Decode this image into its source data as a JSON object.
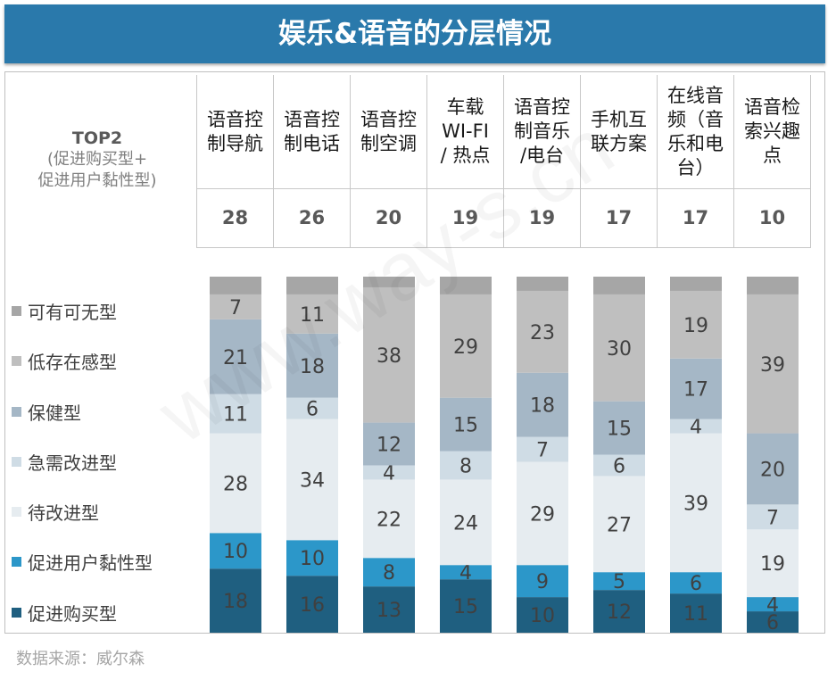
{
  "title": "娱乐&语音的分层情况",
  "header": {
    "row_label_line1": "TOP2",
    "row_label_line2": "(促进购买型+",
    "row_label_line3": "促进用户黏性型)"
  },
  "source": "数据来源：威尔森",
  "watermark": "www.way-s.cn",
  "colors": {
    "可有可无型": "#a6a6a6",
    "低存在感型": "#bfbfbf",
    "保健型": "#a5b7c6",
    "急需改进型": "#cfdce5",
    "待改进型": "#e6ecf0",
    "促进用户黏性型": "#2c97c9",
    "促进购买型": "#1f5f80"
  },
  "chart_data": {
    "type": "bar",
    "stacked": true,
    "normalized": true,
    "categories": [
      "语音控制导航",
      "语音控制电话",
      "语音控制空调",
      "车载WI-FI/ 热点",
      "语音控制音乐/电台",
      "手机互联方案",
      "在线音频（音乐和电台）",
      "语音检索兴趣点"
    ],
    "category_lines": [
      [
        "语音控",
        "制导航"
      ],
      [
        "语音控",
        "制电话"
      ],
      [
        "语音控",
        "制空调"
      ],
      [
        "车载",
        "WI-FI",
        "/ 热点"
      ],
      [
        "语音控",
        "制音乐",
        "/电台"
      ],
      [
        "手机互",
        "联方案"
      ],
      [
        "在线音",
        "频（音",
        "乐和电",
        "台）"
      ],
      [
        "语音检",
        "索兴趣",
        "点"
      ]
    ],
    "top2": [
      "28",
      "26",
      "20",
      "19",
      "19",
      "17",
      "17",
      "10"
    ],
    "series": [
      {
        "name": "促进购买型",
        "values": [
          18,
          16,
          13,
          15,
          10,
          12,
          11,
          6
        ]
      },
      {
        "name": "促进用户黏性型",
        "values": [
          10,
          10,
          8,
          4,
          9,
          5,
          6,
          4
        ]
      },
      {
        "name": "待改进型",
        "values": [
          28,
          34,
          22,
          24,
          29,
          27,
          39,
          19
        ]
      },
      {
        "name": "急需改进型",
        "values": [
          11,
          6,
          4,
          8,
          7,
          6,
          4,
          7
        ]
      },
      {
        "name": "保健型",
        "values": [
          21,
          18,
          12,
          15,
          18,
          15,
          17,
          20
        ]
      },
      {
        "name": "低存在感型",
        "values": [
          7,
          11,
          38,
          29,
          23,
          30,
          19,
          39
        ]
      },
      {
        "name": "可有可无型",
        "values": [
          5,
          5,
          3,
          5,
          4,
          5,
          4,
          5
        ]
      }
    ],
    "labeled_series": [
      "促进购买型",
      "促进用户黏性型",
      "待改进型",
      "急需改进型",
      "保健型",
      "低存在感型"
    ],
    "legend_order": [
      "可有可无型",
      "低存在感型",
      "保健型",
      "急需改进型",
      "待改进型",
      "促进用户黏性型",
      "促进购买型"
    ],
    "legend_position": "left",
    "grid": false,
    "ylim": [
      0,
      100
    ]
  }
}
